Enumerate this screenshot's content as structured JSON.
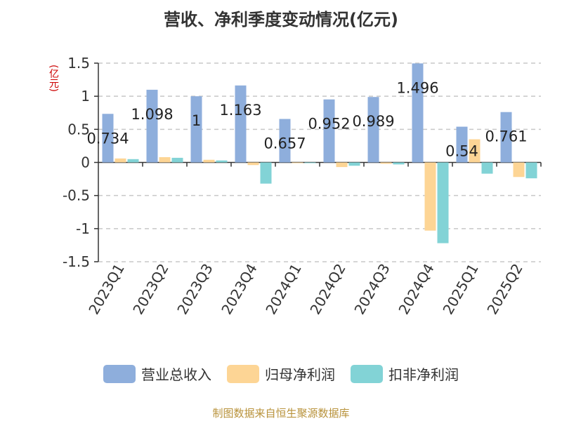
{
  "title": "营收、净利季度变动情况(亿元)",
  "source": "制图数据来自恒生聚源数据库",
  "unit_label": "(亿元)",
  "colors": {
    "revenue": "#8eaedc",
    "net_profit": "#fdd595",
    "non_recurring_profit": "#82d3d6",
    "grid": "#c8c8c8",
    "axis": "#333333"
  },
  "chart_data": {
    "type": "bar",
    "title": "营收、净利季度变动情况(亿元)",
    "ylabel": "(亿元)",
    "ylim": [
      -1.5,
      1.5
    ],
    "yticks": [
      1.5,
      1,
      0.5,
      0,
      -0.5,
      -1,
      -1.5
    ],
    "ytick_labels": [
      "1.5",
      "1",
      "0.5",
      "0",
      "-0.5",
      "-1",
      "-1.5"
    ],
    "categories": [
      "2023Q1",
      "2023Q2",
      "2023Q3",
      "2023Q4",
      "2024Q1",
      "2024Q2",
      "2024Q3",
      "2024Q4",
      "2025Q1",
      "2025Q2"
    ],
    "series": [
      {
        "name": "营业总收入",
        "color": "#8eaedc",
        "values": [
          0.734,
          1.098,
          1,
          1.163,
          0.657,
          0.952,
          0.989,
          1.496,
          0.54,
          0.761
        ],
        "labels": [
          "0.734",
          "1.098",
          "1",
          "1.163",
          "0.657",
          "0.952",
          "0.989",
          "1.496",
          "0.54",
          "0.761"
        ]
      },
      {
        "name": "归母净利润",
        "color": "#fdd595",
        "values": [
          0.06,
          0.08,
          0.04,
          -0.04,
          0.0,
          -0.07,
          -0.02,
          -1.03,
          0.35,
          -0.22
        ]
      },
      {
        "name": "扣非净利润",
        "color": "#82d3d6",
        "values": [
          0.05,
          0.07,
          0.03,
          -0.32,
          -0.01,
          -0.05,
          -0.03,
          -1.22,
          -0.17,
          -0.24
        ]
      }
    ],
    "grid": true,
    "legend": "bottom"
  }
}
